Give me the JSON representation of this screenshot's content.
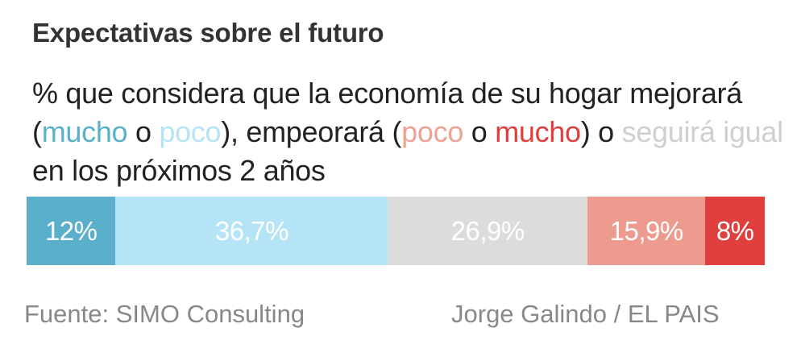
{
  "title": "Expectativas sobre el futuro",
  "subtitle_parts": [
    {
      "text": "% que considera que la economía de su hogar mejorará (",
      "color": "#222222"
    },
    {
      "text": "mucho",
      "color": "#5ab0cb"
    },
    {
      "text": " o ",
      "color": "#222222"
    },
    {
      "text": "poco",
      "color": "#b6e4f7"
    },
    {
      "text": "), empeorará (",
      "color": "#222222"
    },
    {
      "text": "poco",
      "color": "#f0a195"
    },
    {
      "text": " o ",
      "color": "#222222"
    },
    {
      "text": "mucho",
      "color": "#e0403d"
    },
    {
      "text": ") o ",
      "color": "#222222"
    },
    {
      "text": "seguirá igual",
      "color": "#cfcfcf"
    },
    {
      "text": " en los próximos 2 años",
      "color": "#222222"
    }
  ],
  "chart_data": {
    "type": "bar",
    "orientation": "horizontal-stacked",
    "categories": [
      "Mejorará mucho",
      "Mejorará poco",
      "Seguirá igual",
      "Empeorará poco",
      "Empeorará mucho"
    ],
    "values": [
      12,
      36.7,
      26.9,
      15.9,
      8
    ],
    "labels": [
      "12%",
      "36,7%",
      "26,9%",
      "15,9%",
      "8%"
    ],
    "colors": [
      "#5ab0cb",
      "#b6e4f7",
      "#dcdcdc",
      "#ed9a8f",
      "#e0403d"
    ],
    "unit": "%"
  },
  "footer": {
    "source": "Fuente: SIMO Consulting",
    "credit": "Jorge Galindo / EL PAIS"
  }
}
